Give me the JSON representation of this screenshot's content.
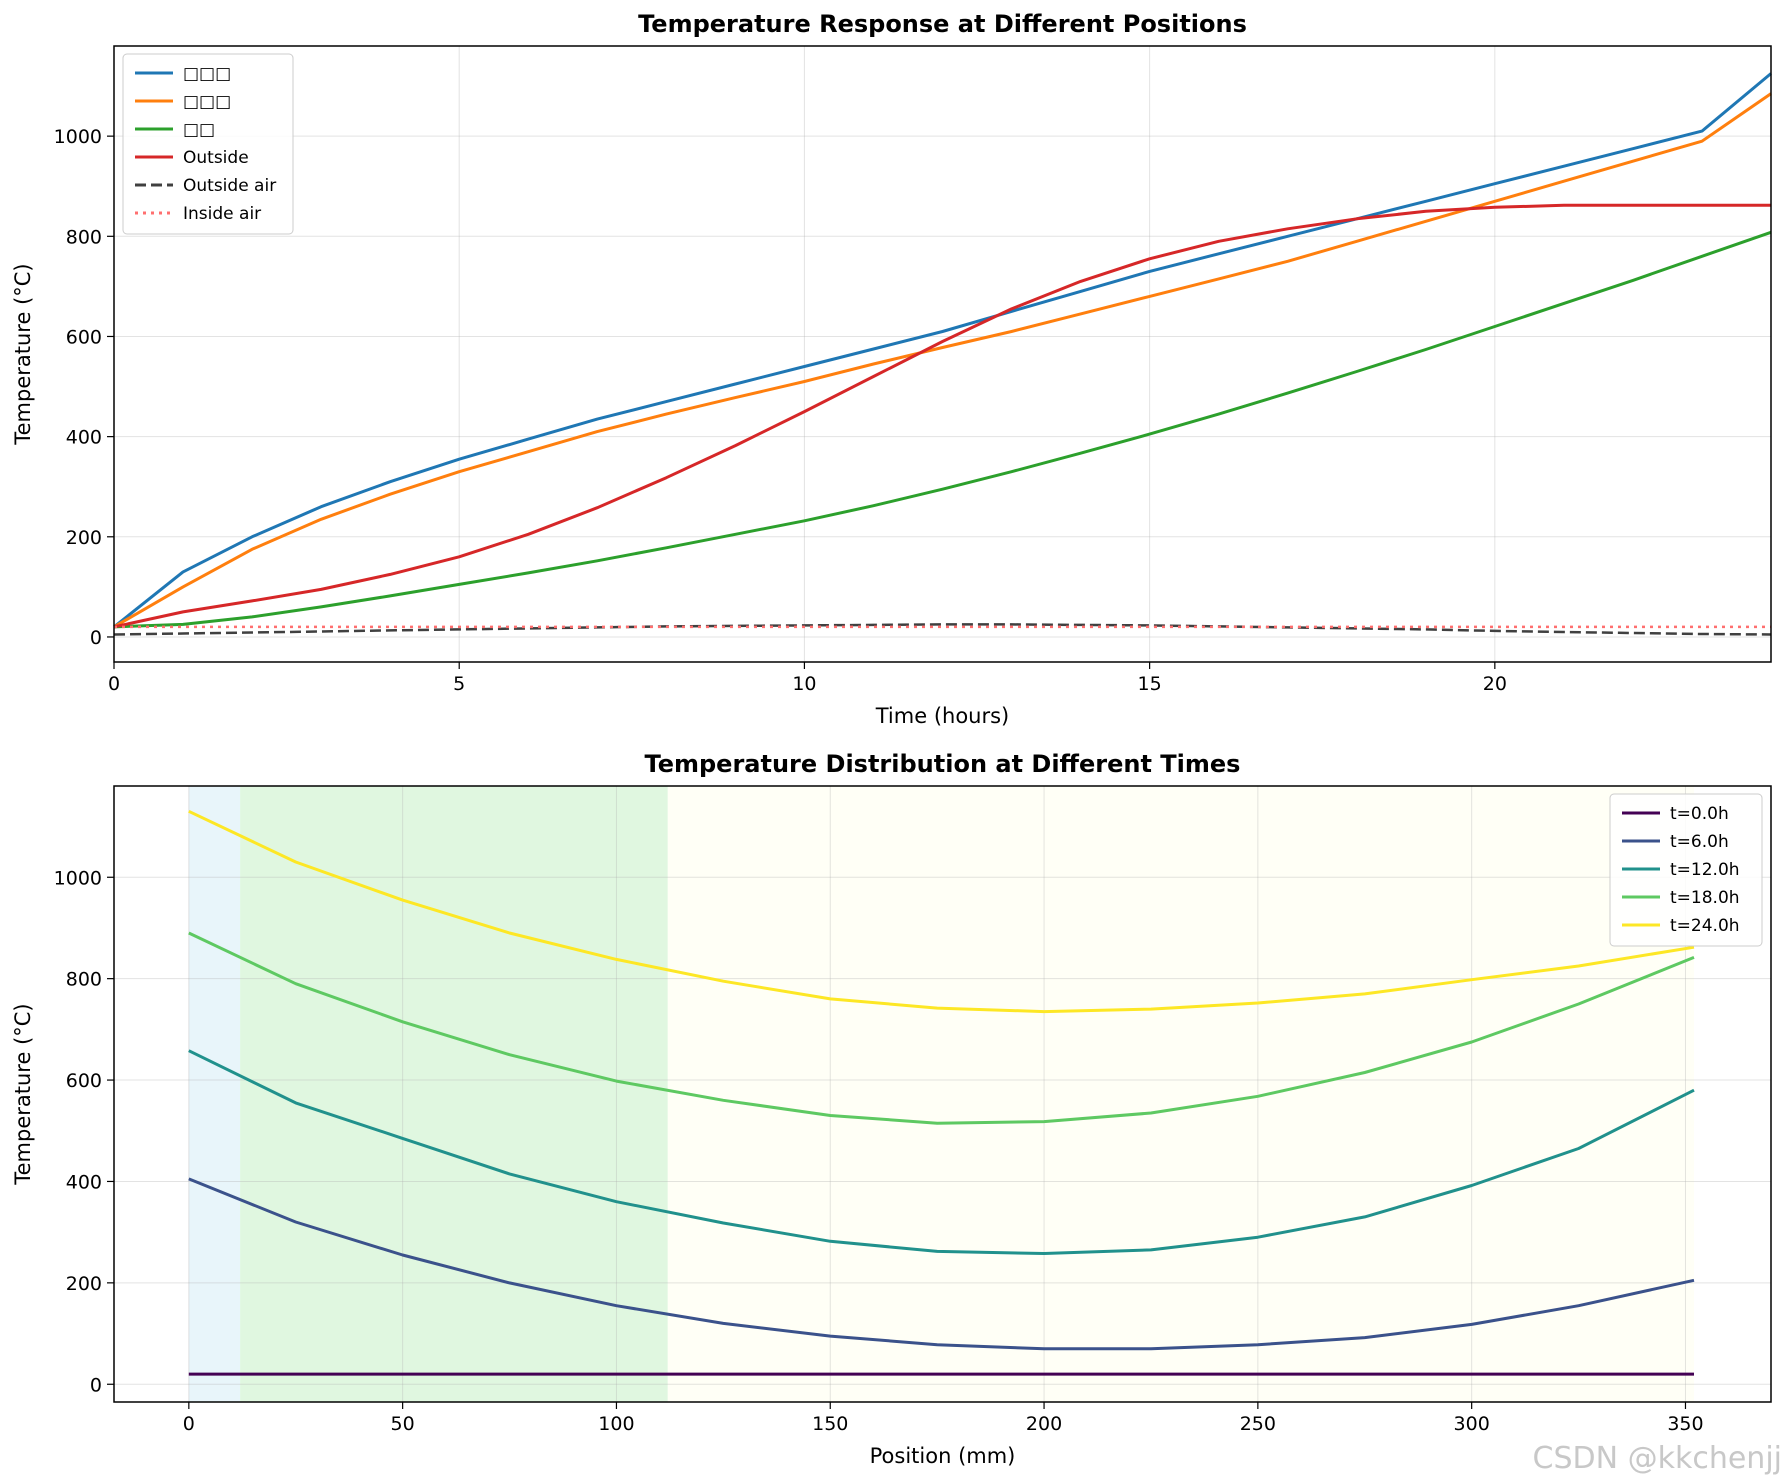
{
  "watermark": "CSDN @kkchenjj",
  "chart_data": [
    {
      "type": "line",
      "title": "Temperature Response at Different Positions",
      "xlabel": "Time (hours)",
      "ylabel": "Temperature (°C)",
      "xlim": [
        0,
        24
      ],
      "ylim": [
        -50,
        1180
      ],
      "xticks": [
        0,
        5,
        10,
        15,
        20
      ],
      "yticks": [
        0,
        200,
        400,
        600,
        800,
        1000
      ],
      "grid": true,
      "legend": "top-left",
      "x": [
        0,
        1,
        2,
        3,
        4,
        5,
        6,
        7,
        8,
        9,
        10,
        11,
        12,
        13,
        14,
        15,
        16,
        17,
        18,
        19,
        20,
        21,
        22,
        23,
        24
      ],
      "series": [
        {
          "name": "□□□",
          "color": "#1f77b4",
          "style": "solid",
          "values": [
            20,
            130,
            200,
            260,
            310,
            355,
            395,
            435,
            470,
            505,
            540,
            575,
            610,
            650,
            690,
            730,
            765,
            800,
            835,
            870,
            905,
            940,
            975,
            1010,
            1125
          ]
        },
        {
          "name": "□□□",
          "color": "#ff7f0e",
          "style": "solid",
          "values": [
            20,
            100,
            175,
            235,
            285,
            330,
            370,
            410,
            445,
            478,
            510,
            545,
            578,
            610,
            645,
            680,
            715,
            750,
            790,
            830,
            870,
            910,
            950,
            990,
            1085
          ]
        },
        {
          "name": "□□",
          "color": "#2ca02c",
          "style": "solid",
          "values": [
            20,
            25,
            40,
            60,
            82,
            105,
            128,
            152,
            178,
            205,
            232,
            262,
            295,
            330,
            367,
            405,
            445,
            487,
            530,
            574,
            620,
            666,
            712,
            760,
            808
          ]
        },
        {
          "name": "Outside",
          "color": "#d62728",
          "style": "solid",
          "values": [
            20,
            50,
            72,
            95,
            125,
            160,
            205,
            258,
            318,
            382,
            450,
            520,
            590,
            655,
            710,
            755,
            790,
            815,
            835,
            850,
            858,
            862,
            862,
            862,
            862
          ]
        },
        {
          "name": "Outside air",
          "color": "#404040",
          "style": "dashed",
          "values": [
            5,
            7,
            9,
            11,
            13,
            15,
            17,
            19,
            21,
            22,
            23,
            24,
            25,
            25,
            24,
            23,
            21,
            19,
            17,
            15,
            12,
            10,
            8,
            6,
            5
          ]
        },
        {
          "name": "Inside air",
          "color": "#ff6f6f",
          "style": "dotted",
          "values": [
            20,
            20,
            20,
            20,
            20,
            20,
            20,
            20,
            20,
            20,
            20,
            20,
            20,
            20,
            20,
            20,
            20,
            20,
            20,
            20,
            20,
            20,
            20,
            20,
            20
          ]
        }
      ]
    },
    {
      "type": "line",
      "title": "Temperature Distribution at Different Times",
      "xlabel": "Position (mm)",
      "ylabel": "Temperature (°C)",
      "xlim": [
        -17.5,
        370
      ],
      "ylim": [
        -35,
        1180
      ],
      "xticks": [
        0,
        50,
        100,
        150,
        200,
        250,
        300,
        350
      ],
      "yticks": [
        0,
        200,
        400,
        600,
        800,
        1000
      ],
      "grid": true,
      "legend": "top-right",
      "shaded_regions": [
        {
          "x0": 0,
          "x1": 12,
          "color": "#d9eef7"
        },
        {
          "x0": 12,
          "x1": 112,
          "color": "#ccf2cc"
        },
        {
          "x0": 112,
          "x1": 352,
          "color": "#fffff0"
        }
      ],
      "x": [
        0,
        25,
        50,
        75,
        100,
        125,
        150,
        175,
        200,
        225,
        250,
        275,
        300,
        325,
        352
      ],
      "series": [
        {
          "name": "t=0.0h",
          "color": "#440154",
          "values": [
            20,
            20,
            20,
            20,
            20,
            20,
            20,
            20,
            20,
            20,
            20,
            20,
            20,
            20,
            20
          ]
        },
        {
          "name": "t=6.0h",
          "color": "#3b528b",
          "values": [
            405,
            320,
            255,
            200,
            155,
            120,
            95,
            78,
            70,
            70,
            78,
            92,
            118,
            155,
            205
          ]
        },
        {
          "name": "t=12.0h",
          "color": "#21918c",
          "values": [
            658,
            555,
            485,
            415,
            360,
            318,
            282,
            262,
            258,
            265,
            290,
            330,
            392,
            465,
            580
          ]
        },
        {
          "name": "t=18.0h",
          "color": "#5ec962",
          "values": [
            890,
            790,
            715,
            650,
            598,
            560,
            530,
            515,
            518,
            535,
            568,
            615,
            675,
            750,
            842
          ]
        },
        {
          "name": "t=24.0h",
          "color": "#fde725",
          "values": [
            1130,
            1030,
            955,
            890,
            838,
            795,
            760,
            742,
            735,
            740,
            752,
            770,
            798,
            825,
            862
          ]
        }
      ]
    }
  ]
}
